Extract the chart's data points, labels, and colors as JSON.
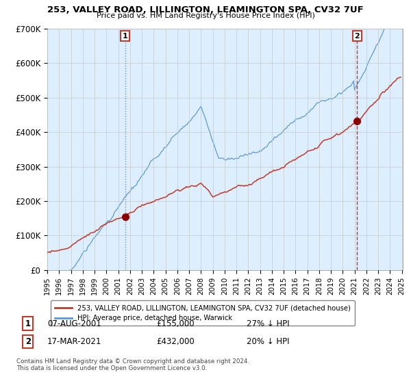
{
  "title1": "253, VALLEY ROAD, LILLINGTON, LEAMINGTON SPA, CV32 7UF",
  "title2": "Price paid vs. HM Land Registry's House Price Index (HPI)",
  "legend_line1": "253, VALLEY ROAD, LILLINGTON, LEAMINGTON SPA, CV32 7UF (detached house)",
  "legend_line2": "HPI: Average price, detached house, Warwick",
  "annotation1_label": "1",
  "annotation1_date": "07-AUG-2001",
  "annotation1_price": "£155,000",
  "annotation1_hpi": "27% ↓ HPI",
  "annotation1_year": 2001.58,
  "annotation1_value": 155000,
  "annotation2_label": "2",
  "annotation2_date": "17-MAR-2021",
  "annotation2_price": "£432,000",
  "annotation2_hpi": "20% ↓ HPI",
  "annotation2_year": 2021.21,
  "annotation2_value": 432000,
  "hpi_color": "#5b9bd5",
  "hpi_fill_color": "#ddeeff",
  "price_color": "#c0392b",
  "dot_color": "#8b0000",
  "footer1": "Contains HM Land Registry data © Crown copyright and database right 2024.",
  "footer2": "This data is licensed under the Open Government Licence v3.0.",
  "ylim_max": 700000,
  "yticks": [
    0,
    100000,
    200000,
    300000,
    400000,
    500000,
    600000,
    700000
  ],
  "ytick_labels": [
    "£0",
    "£100K",
    "£200K",
    "£300K",
    "£400K",
    "£500K",
    "£600K",
    "£700K"
  ],
  "xmin": 1995,
  "xmax": 2025
}
